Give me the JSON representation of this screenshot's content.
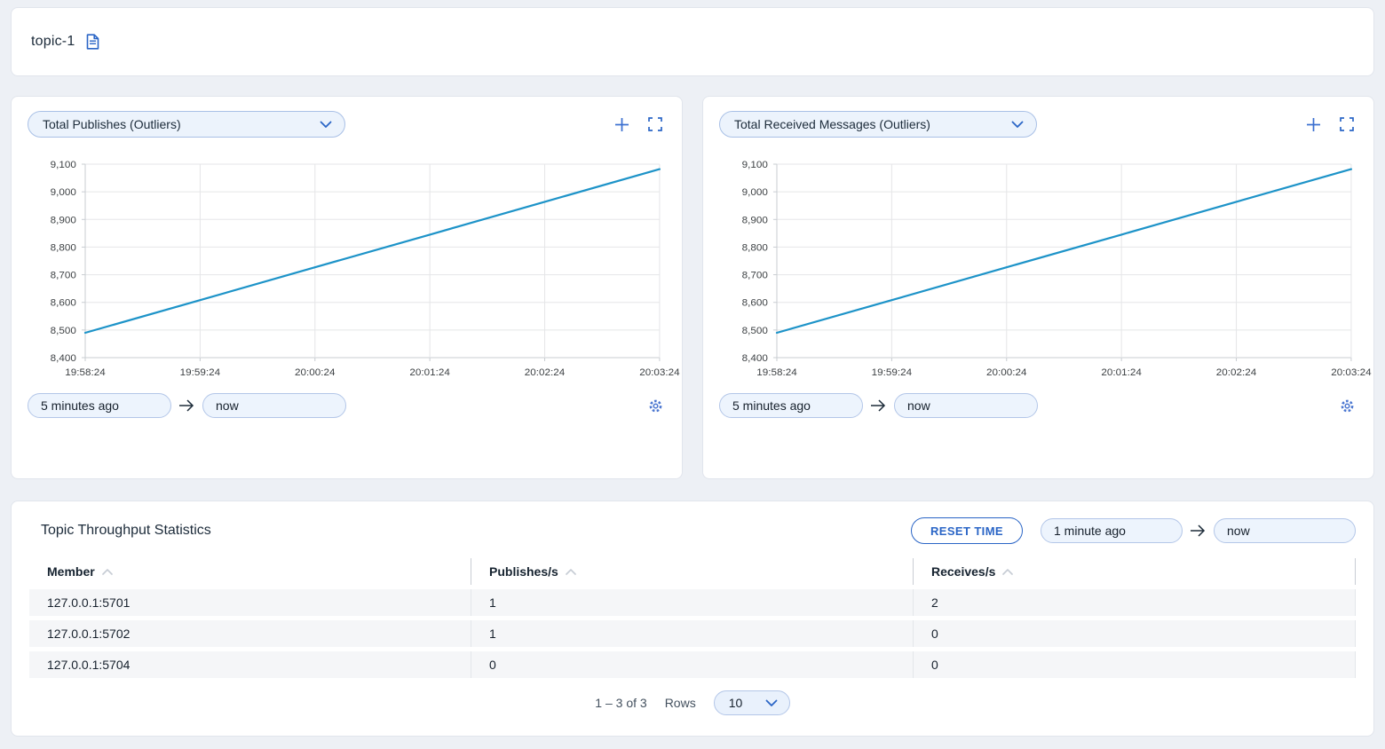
{
  "page": {
    "topic_title": "topic-1"
  },
  "icons": {
    "topic_doc": "document-icon",
    "add_chart": "plus-icon",
    "fullscreen": "expand-icon",
    "settings": "gear-icon",
    "select_open": "chevron-down-icon",
    "range_arrow": "arrow-right-icon",
    "sort": "chevron-up-icon"
  },
  "colors": {
    "accent_blue": "#2a65c6",
    "icon_blue": "#3a6fd0",
    "line_blue": "#1d93c8",
    "pill_bg": "#edf4fd",
    "pill_border": "#b3c6e8",
    "page_bg": "#edf0f5",
    "row_bg": "#f5f6f8",
    "text_dark": "#1a2735"
  },
  "charts": [
    {
      "metric_label": "Total Publishes (Outliers)",
      "from_value": "5 minutes ago",
      "to_value": "now"
    },
    {
      "metric_label": "Total Received Messages (Outliers)",
      "from_value": "5 minutes ago",
      "to_value": "now"
    }
  ],
  "chart_data": [
    {
      "type": "line",
      "title": "Total Publishes (Outliers)",
      "x": [
        "19:58:24",
        "19:59:24",
        "20:00:24",
        "20:01:24",
        "20:02:24",
        "20:03:24"
      ],
      "series": [
        {
          "name": "Total Publishes",
          "values": [
            8490,
            8608,
            8727,
            8845,
            8964,
            9082
          ]
        }
      ],
      "xlabel": "",
      "ylabel": "",
      "ylim": [
        8400,
        9100
      ],
      "ytick_step": 100,
      "grid": true,
      "legend": "none",
      "line_color": "#1d93c8"
    },
    {
      "type": "line",
      "title": "Total Received Messages (Outliers)",
      "x": [
        "19:58:24",
        "19:59:24",
        "20:00:24",
        "20:01:24",
        "20:02:24",
        "20:03:24"
      ],
      "series": [
        {
          "name": "Total Received Messages",
          "values": [
            8490,
            8608,
            8727,
            8845,
            8964,
            9082
          ]
        }
      ],
      "xlabel": "",
      "ylabel": "",
      "ylim": [
        8400,
        9100
      ],
      "ytick_step": 100,
      "grid": true,
      "legend": "none",
      "line_color": "#1d93c8"
    }
  ],
  "stats_panel": {
    "title": "Topic Throughput Statistics",
    "reset_button_label": "RESET TIME",
    "from_value": "1 minute ago",
    "to_value": "now",
    "table": {
      "columns": [
        "Member",
        "Publishes/s",
        "Receives/s"
      ],
      "rows": [
        [
          "127.0.0.1:5701",
          "1",
          "2"
        ],
        [
          "127.0.0.1:5702",
          "1",
          "0"
        ],
        [
          "127.0.0.1:5704",
          "0",
          "0"
        ]
      ]
    },
    "pagination": {
      "range_text": "1 – 3 of 3",
      "rows_label": "Rows",
      "rows_per_page": "10"
    }
  }
}
